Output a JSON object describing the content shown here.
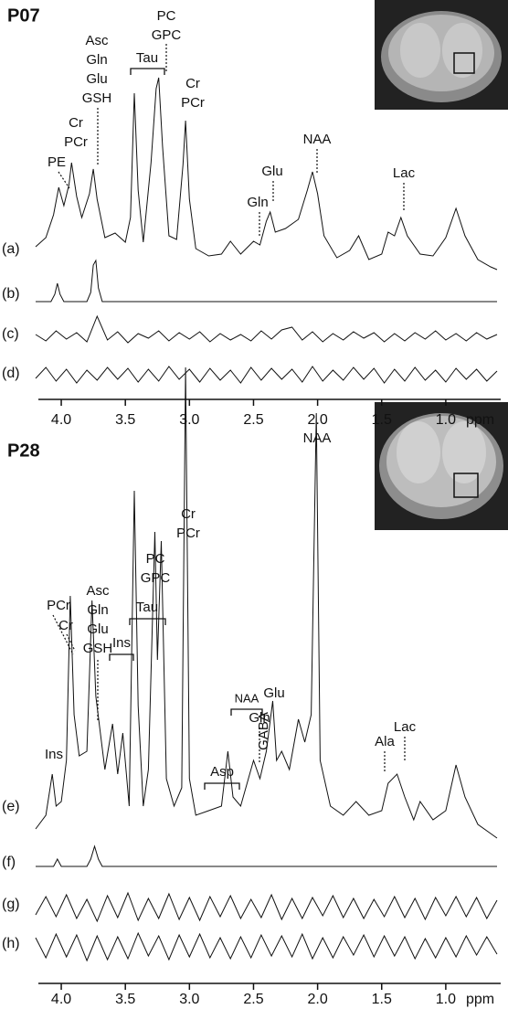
{
  "chart_data": [
    {
      "type": "line",
      "title": "P07",
      "xlabel": "ppm",
      "xlim": [
        4.2,
        0.6
      ],
      "xticks": [
        {
          "value": 4.0,
          "label": "4.0"
        },
        3.5,
        {
          "value": 3.0,
          "label": "3.0"
        },
        2.5,
        {
          "value": 2.0,
          "label": "2.0"
        },
        1.5,
        {
          "value": 1.0,
          "label": "1.0"
        }
      ],
      "series": [
        {
          "name": "(a)",
          "color": "#111111",
          "x": [
            4.2,
            4.12,
            4.06,
            4.02,
            3.98,
            3.94,
            3.92,
            3.88,
            3.84,
            3.78,
            3.75,
            3.72,
            3.66,
            3.58,
            3.5,
            3.46,
            3.43,
            3.4,
            3.36,
            3.3,
            3.26,
            3.24,
            3.21,
            3.16,
            3.1,
            3.05,
            3.03,
            3.0,
            2.95,
            2.85,
            2.75,
            2.68,
            2.6,
            2.5,
            2.45,
            2.4,
            2.37,
            2.33,
            2.25,
            2.15,
            2.08,
            2.04,
            2.0,
            1.95,
            1.85,
            1.75,
            1.68,
            1.6,
            1.5,
            1.45,
            1.4,
            1.35,
            1.3,
            1.2,
            1.1,
            1.0,
            0.92,
            0.85,
            0.75,
            0.65,
            0.6
          ],
          "values": [
            30,
            40,
            65,
            95,
            75,
            98,
            122,
            85,
            62,
            88,
            115,
            82,
            40,
            45,
            35,
            62,
            198,
            92,
            35,
            122,
            203,
            215,
            140,
            42,
            38,
            120,
            168,
            82,
            28,
            20,
            22,
            36,
            22,
            36,
            32,
            58,
            68,
            46,
            50,
            60,
            92,
            112,
            88,
            42,
            18,
            26,
            42,
            16,
            22,
            46,
            42,
            62,
            42,
            22,
            20,
            40,
            72,
            42,
            16,
            8,
            5
          ]
        },
        {
          "name": "(b)",
          "color": "#111111",
          "x": [
            4.2,
            4.08,
            4.05,
            4.03,
            4.01,
            3.98,
            3.8,
            3.77,
            3.75,
            3.73,
            3.71,
            3.68,
            3.5,
            0.6
          ],
          "values": [
            0,
            0,
            8,
            20,
            8,
            0,
            0,
            10,
            40,
            45,
            15,
            0,
            0,
            0
          ]
        },
        {
          "name": "(c)",
          "color": "#111111",
          "x": [
            4.2,
            4.12,
            4.04,
            3.96,
            3.88,
            3.8,
            3.72,
            3.64,
            3.56,
            3.48,
            3.4,
            3.32,
            3.24,
            3.16,
            3.08,
            3.0,
            2.92,
            2.84,
            2.76,
            2.68,
            2.6,
            2.52,
            2.44,
            2.36,
            2.28,
            2.2,
            2.12,
            2.04,
            1.96,
            1.88,
            1.8,
            1.72,
            1.64,
            1.56,
            1.48,
            1.4,
            1.32,
            1.24,
            1.16,
            1.08,
            1.0,
            0.92,
            0.84,
            0.76,
            0.68,
            0.6
          ],
          "values": [
            2,
            -5,
            6,
            -3,
            4,
            -6,
            22,
            -4,
            5,
            -7,
            3,
            -2,
            6,
            -5,
            4,
            -3,
            5,
            -6,
            3,
            -4,
            2,
            -5,
            6,
            -3,
            7,
            10,
            -4,
            5,
            -6,
            3,
            -4,
            5,
            -2,
            4,
            -6,
            3,
            -5,
            4,
            -3,
            6,
            -4,
            3,
            -5,
            4,
            -3,
            2
          ]
        },
        {
          "name": "(d)",
          "color": "#111111",
          "x": [
            4.2,
            4.12,
            4.04,
            3.96,
            3.88,
            3.8,
            3.72,
            3.64,
            3.56,
            3.48,
            3.4,
            3.32,
            3.24,
            3.16,
            3.08,
            3.0,
            2.92,
            2.84,
            2.76,
            2.68,
            2.6,
            2.52,
            2.44,
            2.36,
            2.28,
            2.2,
            2.12,
            2.04,
            1.96,
            1.88,
            1.8,
            1.72,
            1.64,
            1.56,
            1.48,
            1.4,
            1.32,
            1.24,
            1.16,
            1.08,
            1.0,
            0.92,
            0.84,
            0.76,
            0.68,
            0.6
          ],
          "values": [
            -4,
            8,
            -7,
            6,
            -9,
            5,
            -6,
            8,
            -5,
            7,
            -8,
            6,
            -7,
            9,
            -5,
            6,
            -8,
            7,
            -6,
            5,
            -9,
            8,
            -6,
            7,
            -5,
            6,
            -8,
            9,
            -7,
            5,
            -6,
            8,
            -5,
            7,
            -9,
            6,
            -7,
            8,
            -6,
            5,
            -8,
            7,
            -5,
            6,
            -7,
            4
          ]
        }
      ],
      "annotations": [
        {
          "text": [
            "PE"
          ]
        },
        {
          "text": [
            "Cr",
            "PCr"
          ]
        },
        {
          "text": [
            "Asc",
            "Gln",
            "Glu",
            "GSH"
          ]
        },
        {
          "text": [
            "PC",
            "GPC"
          ]
        },
        {
          "text": [
            "Tau"
          ]
        },
        {
          "text": [
            "Cr",
            "PCr"
          ]
        },
        {
          "text": [
            "Glu"
          ]
        },
        {
          "text": [
            "Gln"
          ]
        },
        {
          "text": [
            "NAA"
          ]
        },
        {
          "text": [
            "Lac"
          ]
        }
      ]
    },
    {
      "type": "line",
      "title": "P28",
      "xlabel": "ppm",
      "xlim": [
        4.2,
        0.6
      ],
      "xticks": [
        {
          "value": 4.0,
          "label": "4.0"
        },
        3.5,
        {
          "value": 3.0,
          "label": "3.0"
        },
        2.5,
        {
          "value": 2.0,
          "label": "2.0"
        },
        1.5,
        {
          "value": 1.0,
          "label": "1.0"
        }
      ],
      "series": [
        {
          "name": "(e)",
          "color": "#111111",
          "x": [
            4.2,
            4.12,
            4.07,
            4.04,
            4.0,
            3.96,
            3.93,
            3.9,
            3.86,
            3.8,
            3.76,
            3.73,
            3.66,
            3.6,
            3.56,
            3.52,
            3.47,
            3.43,
            3.4,
            3.36,
            3.32,
            3.27,
            3.25,
            3.22,
            3.18,
            3.12,
            3.06,
            3.03,
            3.0,
            2.95,
            2.85,
            2.75,
            2.7,
            2.66,
            2.6,
            2.5,
            2.45,
            2.4,
            2.35,
            2.32,
            2.28,
            2.22,
            2.15,
            2.1,
            2.05,
            2.01,
            1.98,
            1.9,
            1.8,
            1.7,
            1.6,
            1.5,
            1.45,
            1.38,
            1.32,
            1.25,
            1.2,
            1.1,
            1.0,
            0.92,
            0.85,
            0.75,
            0.65,
            0.6
          ],
          "values": [
            15,
            30,
            75,
            40,
            45,
            90,
            270,
            140,
            95,
            100,
            265,
            160,
            80,
            130,
            75,
            120,
            40,
            385,
            150,
            40,
            80,
            340,
            200,
            330,
            70,
            40,
            60,
            520,
            70,
            30,
            35,
            40,
            100,
            50,
            40,
            90,
            70,
            100,
            155,
            90,
            100,
            80,
            135,
            110,
            140,
            470,
            90,
            40,
            30,
            45,
            30,
            35,
            65,
            75,
            50,
            25,
            45,
            25,
            35,
            85,
            50,
            20,
            10,
            5
          ]
        },
        {
          "name": "(f)",
          "color": "#111111",
          "x": [
            4.2,
            4.06,
            4.03,
            4.0,
            3.8,
            3.77,
            3.74,
            3.71,
            3.68,
            3.5,
            0.6
          ],
          "values": [
            0,
            0,
            8,
            0,
            0,
            8,
            22,
            8,
            0,
            0,
            0
          ]
        },
        {
          "name": "(g)",
          "color": "#111111",
          "x": [
            4.2,
            4.12,
            4.04,
            3.96,
            3.88,
            3.8,
            3.72,
            3.64,
            3.56,
            3.48,
            3.4,
            3.32,
            3.24,
            3.16,
            3.08,
            3.0,
            2.92,
            2.84,
            2.76,
            2.68,
            2.6,
            2.52,
            2.44,
            2.36,
            2.28,
            2.2,
            2.12,
            2.04,
            1.96,
            1.88,
            1.8,
            1.72,
            1.64,
            1.56,
            1.48,
            1.4,
            1.32,
            1.24,
            1.16,
            1.08,
            1.0,
            0.92,
            0.84,
            0.76,
            0.68,
            0.6
          ],
          "values": [
            -8,
            12,
            -10,
            14,
            -12,
            9,
            -15,
            13,
            -11,
            16,
            -14,
            10,
            -12,
            15,
            -13,
            11,
            -14,
            12,
            -10,
            13,
            -12,
            9,
            -11,
            14,
            -13,
            10,
            -12,
            11,
            -9,
            13,
            -11,
            10,
            -12,
            9,
            -10,
            12,
            -11,
            10,
            -13,
            11,
            -9,
            12,
            -10,
            11,
            -12,
            8
          ]
        },
        {
          "name": "(h)",
          "color": "#111111",
          "x": [
            4.2,
            4.12,
            4.04,
            3.96,
            3.88,
            3.8,
            3.72,
            3.64,
            3.56,
            3.48,
            3.4,
            3.32,
            3.24,
            3.16,
            3.08,
            3.0,
            2.92,
            2.84,
            2.76,
            2.68,
            2.6,
            2.52,
            2.44,
            2.36,
            2.28,
            2.2,
            2.12,
            2.04,
            1.96,
            1.88,
            1.8,
            1.72,
            1.64,
            1.56,
            1.48,
            1.4,
            1.32,
            1.24,
            1.16,
            1.08,
            1.0,
            0.92,
            0.84,
            0.76,
            0.68,
            0.6
          ],
          "values": [
            10,
            -12,
            14,
            -11,
            13,
            -15,
            12,
            -14,
            11,
            -13,
            15,
            -10,
            12,
            -14,
            13,
            -11,
            14,
            -12,
            10,
            -13,
            11,
            -12,
            13,
            -10,
            12,
            -11,
            14,
            -13,
            10,
            -12,
            11,
            -9,
            13,
            -11,
            12,
            -10,
            11,
            -13,
            9,
            -12,
            10,
            -11,
            12,
            -9,
            11,
            -8
          ]
        }
      ],
      "annotations": [
        {
          "text": [
            "PCr",
            "Cr"
          ]
        },
        {
          "text": [
            "Asc",
            "Gln",
            "Glu",
            "GSH"
          ]
        },
        {
          "text": [
            "PC",
            "GPC"
          ]
        },
        {
          "text": [
            "Cr",
            "PCr"
          ]
        },
        {
          "text": [
            "Tau"
          ]
        },
        {
          "text": [
            "Ins"
          ]
        },
        {
          "text": [
            "Ins"
          ]
        },
        {
          "text": [
            "Asp"
          ]
        },
        {
          "text": [
            "NAA"
          ]
        },
        {
          "text": [
            "GABA"
          ]
        },
        {
          "text": [
            "Glu"
          ]
        },
        {
          "text": [
            "Gln"
          ]
        },
        {
          "text": [
            "NAA"
          ]
        },
        {
          "text": [
            "Ala"
          ]
        },
        {
          "text": [
            "Lac"
          ]
        }
      ]
    }
  ]
}
